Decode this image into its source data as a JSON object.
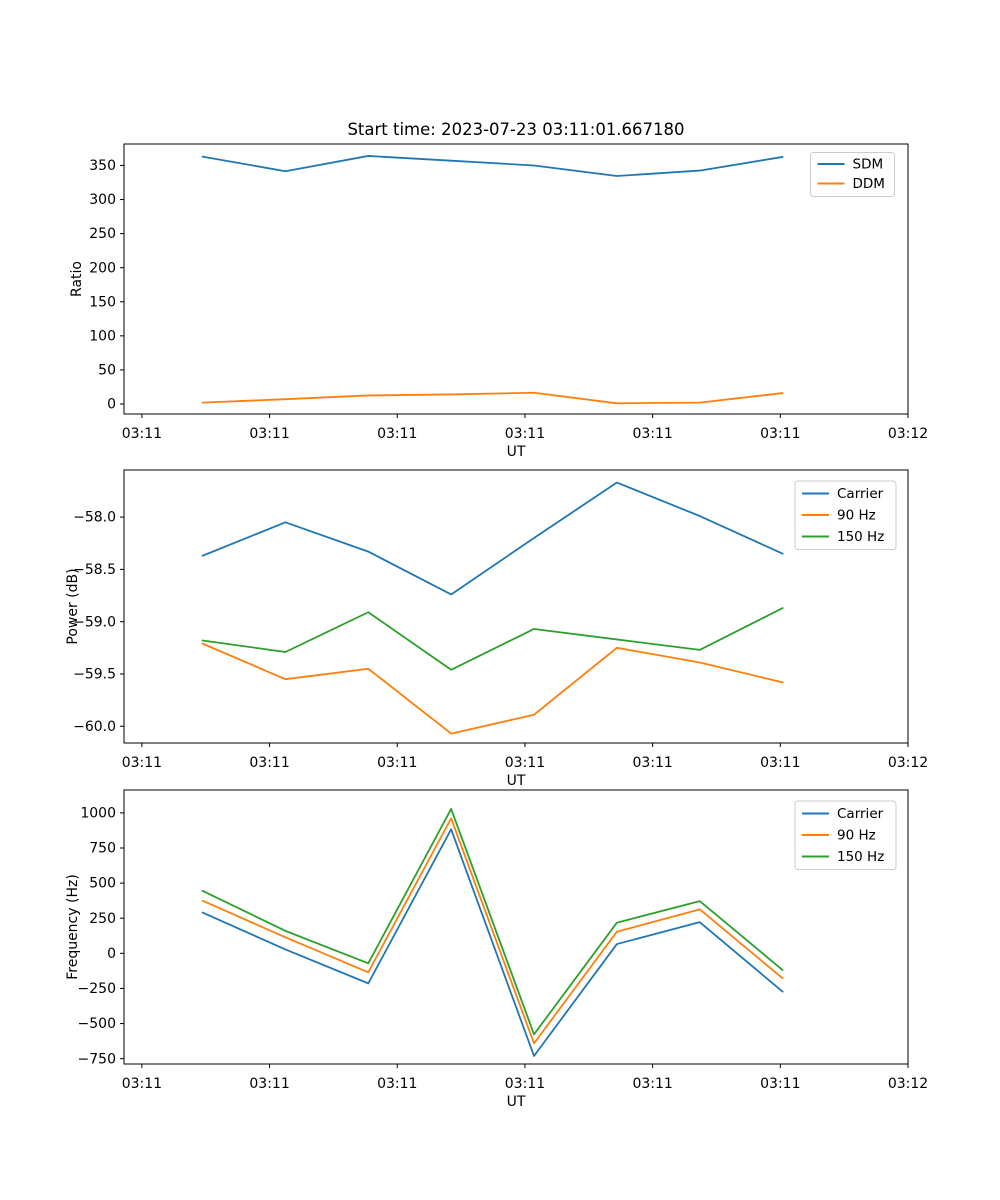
{
  "figure_title": "Start time: 2023-07-23 03:11:01.667180",
  "colors": {
    "blue": "#1f77b4",
    "orange": "#ff7f0e",
    "green": "#2ca02c"
  },
  "chart_data": [
    {
      "type": "line",
      "id": "ratio",
      "title": "Start time: 2023-07-23 03:11:01.667180",
      "ylabel": "Ratio",
      "xlabel": "UT",
      "x": [
        4.75,
        11.24,
        17.73,
        24.22,
        30.71,
        37.2,
        43.69,
        50.18
      ],
      "xlim": [
        -1.4,
        60
      ],
      "xticks": [
        0,
        10,
        20,
        30,
        40,
        50,
        60
      ],
      "xtick_labels": [
        "03:11",
        "03:11",
        "03:11",
        "03:11",
        "03:11",
        "03:11",
        "03:12"
      ],
      "ylim": [
        -14.7,
        381.5
      ],
      "yticks": [
        0,
        50,
        100,
        150,
        200,
        250,
        300,
        350
      ],
      "ytick_labels": [
        "0",
        "50",
        "100",
        "150",
        "200",
        "250",
        "300",
        "350"
      ],
      "grid": false,
      "legend_position": "upper right",
      "series": [
        {
          "name": "SDM",
          "color": "#1f77b4",
          "values": [
            363,
            341.5,
            364,
            357,
            350,
            334.5,
            342.5,
            362.5
          ]
        },
        {
          "name": "DDM",
          "color": "#ff7f0e",
          "values": [
            2,
            7,
            12.5,
            14,
            16.5,
            1,
            2,
            16
          ]
        }
      ]
    },
    {
      "type": "line",
      "id": "power",
      "title": "",
      "ylabel": "Power (dB)",
      "xlabel": "UT",
      "x": [
        4.75,
        11.24,
        17.73,
        24.22,
        30.71,
        37.2,
        43.69,
        50.18
      ],
      "xlim": [
        -1.4,
        60
      ],
      "xticks": [
        0,
        10,
        20,
        30,
        40,
        50,
        60
      ],
      "xtick_labels": [
        "03:11",
        "03:11",
        "03:11",
        "03:11",
        "03:11",
        "03:11",
        "03:12"
      ],
      "ylim": [
        -60.16,
        -57.55
      ],
      "yticks": [
        -58.0,
        -58.5,
        -59.0,
        -59.5,
        -60.0
      ],
      "ytick_labels": [
        "−58.0",
        "−58.5",
        "−59.0",
        "−59.5",
        "−60.0"
      ],
      "grid": false,
      "legend_position": "upper right",
      "series": [
        {
          "name": "Carrier",
          "color": "#1f77b4",
          "values": [
            -58.37,
            -58.05,
            -58.33,
            -58.74,
            -58.2,
            -57.67,
            -57.99,
            -58.35
          ]
        },
        {
          "name": "90 Hz",
          "color": "#ff7f0e",
          "values": [
            -59.21,
            -59.55,
            -59.45,
            -60.07,
            -59.89,
            -59.25,
            -59.39,
            -59.58
          ]
        },
        {
          "name": "150 Hz",
          "color": "#2ca02c",
          "values": [
            -59.18,
            -59.29,
            -58.91,
            -59.46,
            -59.07,
            -59.17,
            -59.27,
            -58.87
          ]
        }
      ]
    },
    {
      "type": "line",
      "id": "frequency",
      "title": "",
      "ylabel": "Frequency (Hz)",
      "xlabel": "UT",
      "x": [
        4.75,
        11.24,
        17.73,
        24.22,
        30.71,
        37.2,
        43.69,
        50.18
      ],
      "xlim": [
        -1.4,
        60
      ],
      "xticks": [
        0,
        10,
        20,
        30,
        40,
        50,
        60
      ],
      "xtick_labels": [
        "03:11",
        "03:11",
        "03:11",
        "03:11",
        "03:11",
        "03:11",
        "03:12"
      ],
      "ylim": [
        -788,
        1163
      ],
      "yticks": [
        1000,
        750,
        500,
        250,
        0,
        -250,
        -500,
        -750
      ],
      "ytick_labels": [
        "1000",
        "750",
        "500",
        "250",
        "0",
        "−250",
        "−500",
        "−750"
      ],
      "grid": false,
      "legend_position": "upper right",
      "series": [
        {
          "name": "Carrier",
          "color": "#1f77b4",
          "values": [
            290,
            28,
            -214,
            883,
            -731,
            66,
            222,
            -273
          ]
        },
        {
          "name": "90 Hz",
          "color": "#ff7f0e",
          "values": [
            375,
            114,
            -135,
            961,
            -641,
            154,
            313,
            -178
          ]
        },
        {
          "name": "150 Hz",
          "color": "#2ca02c",
          "values": [
            445,
            160,
            -71,
            1028,
            -577,
            218,
            372,
            -119
          ]
        }
      ]
    }
  ]
}
